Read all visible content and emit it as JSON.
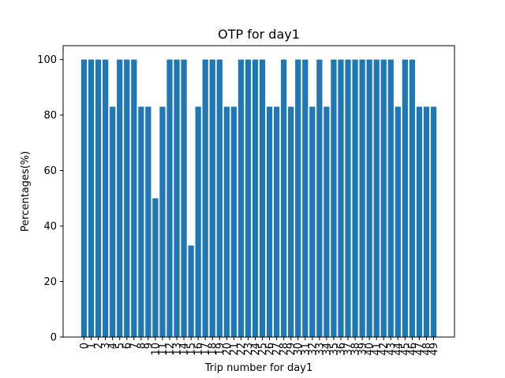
{
  "chart_data": {
    "type": "bar",
    "title": "OTP for day1",
    "xlabel": "Trip number for day1",
    "ylabel": "Percentages(%)",
    "ylim": [
      0,
      105
    ],
    "yticks": [
      0,
      20,
      40,
      60,
      80,
      100
    ],
    "categories": [
      "0",
      "1",
      "2",
      "3",
      "4",
      "5",
      "6",
      "7",
      "8",
      "9",
      "10",
      "11",
      "12",
      "13",
      "14",
      "15",
      "16",
      "17",
      "18",
      "19",
      "20",
      "21",
      "22",
      "23",
      "24",
      "25",
      "26",
      "27",
      "28",
      "29",
      "30",
      "31",
      "32",
      "33",
      "34",
      "35",
      "36",
      "37",
      "38",
      "39",
      "40",
      "41",
      "42",
      "43",
      "44",
      "45",
      "46",
      "47",
      "48",
      "49"
    ],
    "values": [
      100,
      100,
      100,
      100,
      83,
      100,
      100,
      100,
      83,
      83,
      50,
      83,
      100,
      100,
      100,
      33,
      83,
      100,
      100,
      100,
      83,
      83,
      100,
      100,
      100,
      100,
      83,
      83,
      100,
      83,
      100,
      100,
      83,
      100,
      83,
      100,
      100,
      100,
      100,
      100,
      100,
      100,
      100,
      100,
      83,
      100,
      100,
      83,
      83,
      83
    ],
    "bar_color": "#1f77b4",
    "grid": false
  }
}
